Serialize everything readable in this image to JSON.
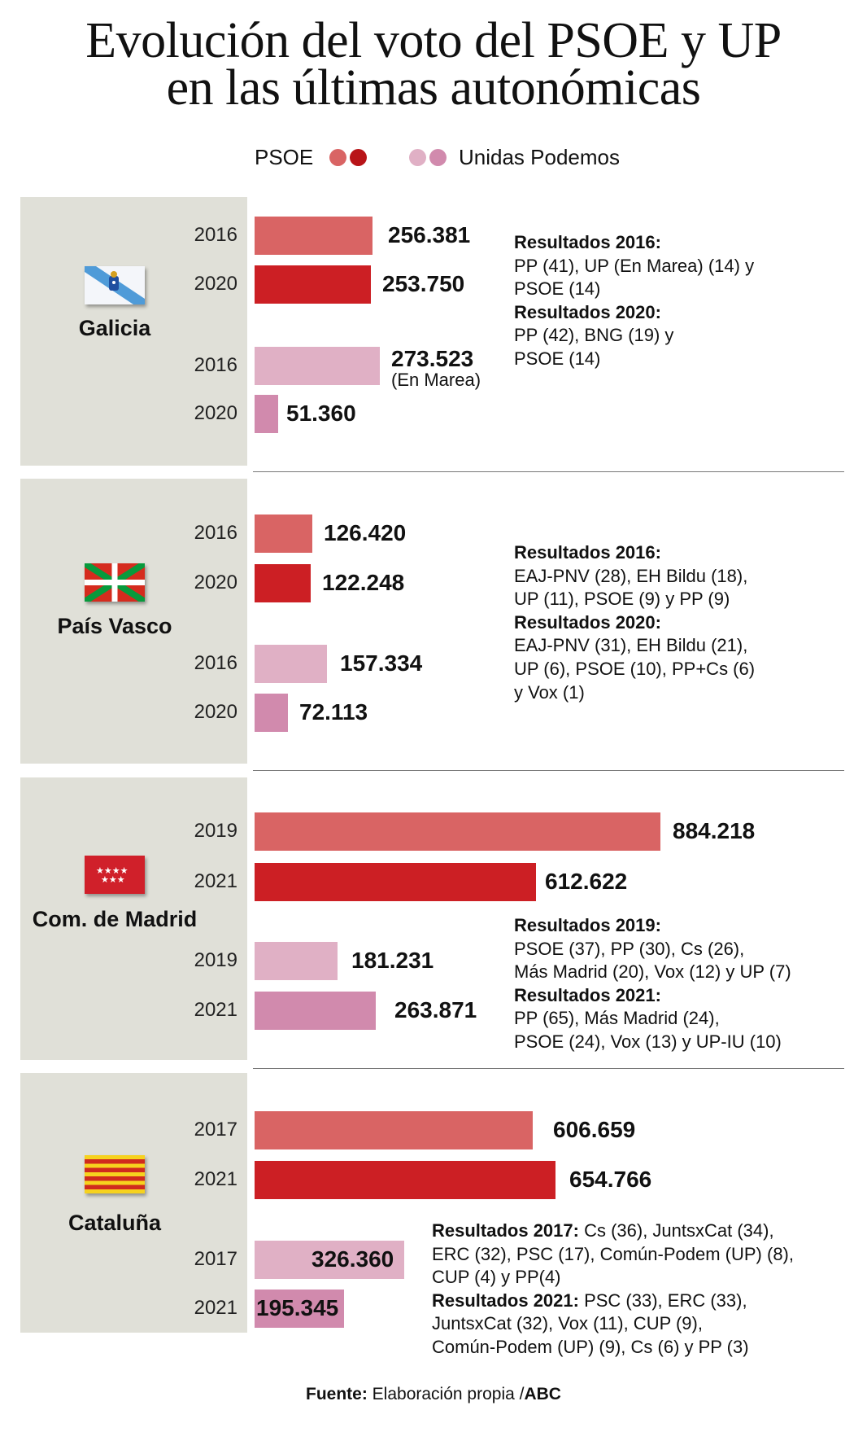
{
  "title_lines": [
    "Evolución del voto del PSOE y UP",
    "en las últimas autonómicas"
  ],
  "legend": {
    "psoe": "PSOE",
    "up": "Unidas Podemos"
  },
  "colors": {
    "psoe_old": "#d96464",
    "psoe_new": "#cc1f24",
    "up_old": "#e0b0c5",
    "up_new": "#d18aad",
    "panel": "#e0e0d8"
  },
  "chart_data": {
    "type": "bar",
    "orientation": "horizontal",
    "regions": [
      {
        "name": "Galicia",
        "flag": "galicia-flag-icon",
        "bars": [
          {
            "party": "PSOE",
            "year": "2016",
            "value": 256381,
            "label": "256.381"
          },
          {
            "party": "PSOE",
            "year": "2020",
            "value": 253750,
            "label": "253.750"
          },
          {
            "party": "UP",
            "year": "2016",
            "value": 273523,
            "label": "273.523",
            "sublabel": "(En Marea)"
          },
          {
            "party": "UP",
            "year": "2020",
            "value": 51360,
            "label": "51.360"
          }
        ],
        "notes": [
          {
            "b": "Resultados 2016:",
            "t": ""
          },
          {
            "t": "PP (41), UP (En Marea) (14) y"
          },
          {
            "t": "PSOE (14)"
          },
          {
            "b": "Resultados 2020:",
            "t": ""
          },
          {
            "t": "PP (42), BNG (19) y"
          },
          {
            "t": "PSOE (14)"
          }
        ]
      },
      {
        "name": "País Vasco",
        "flag": "basque-flag-icon",
        "bars": [
          {
            "party": "PSOE",
            "year": "2016",
            "value": 126420,
            "label": "126.420"
          },
          {
            "party": "PSOE",
            "year": "2020",
            "value": 122248,
            "label": "122.248"
          },
          {
            "party": "UP",
            "year": "2016",
            "value": 157334,
            "label": "157.334"
          },
          {
            "party": "UP",
            "year": "2020",
            "value": 72113,
            "label": "72.113"
          }
        ],
        "notes": [
          {
            "b": "Resultados 2016:",
            "t": ""
          },
          {
            "t": "EAJ-PNV (28), EH Bildu (18),"
          },
          {
            "t": "UP (11), PSOE (9) y PP (9)"
          },
          {
            "b": "Resultados 2020:",
            "t": ""
          },
          {
            "t": "EAJ-PNV (31), EH Bildu (21),"
          },
          {
            "t": "UP (6), PSOE (10), PP+Cs (6)"
          },
          {
            "t": "y Vox (1)"
          }
        ]
      },
      {
        "name": "Com. de Madrid",
        "flag": "madrid-flag-icon",
        "bars": [
          {
            "party": "PSOE",
            "year": "2019",
            "value": 884218,
            "label": "884.218"
          },
          {
            "party": "PSOE",
            "year": "2021",
            "value": 612622,
            "label": "612.622"
          },
          {
            "party": "UP",
            "year": "2019",
            "value": 181231,
            "label": "181.231"
          },
          {
            "party": "UP",
            "year": "2021",
            "value": 263871,
            "label": "263.871"
          }
        ],
        "notes": [
          {
            "b": "Resultados 2019:",
            "t": ""
          },
          {
            "t": "PSOE (37), PP (30), Cs (26),"
          },
          {
            "t": "Más Madrid (20), Vox (12) y UP (7)"
          },
          {
            "b": "Resultados 2021:",
            "t": ""
          },
          {
            "t": "PP (65), Más Madrid (24),"
          },
          {
            "t": "PSOE (24), Vox (13) y UP-IU (10)"
          }
        ]
      },
      {
        "name": "Cataluña",
        "flag": "catalonia-flag-icon",
        "bars": [
          {
            "party": "PSOE",
            "year": "2017",
            "value": 606659,
            "label": "606.659"
          },
          {
            "party": "PSOE",
            "year": "2021",
            "value": 654766,
            "label": "654.766"
          },
          {
            "party": "UP",
            "year": "2017",
            "value": 326360,
            "label": "326.360"
          },
          {
            "party": "UP",
            "year": "2021",
            "value": 195345,
            "label": "195.345"
          }
        ],
        "notes": [
          {
            "b": "Resultados 2017:",
            "t": " Cs (36), JuntsxCat (34),"
          },
          {
            "t": "ERC (32), PSC (17), Común-Podem (UP) (8),"
          },
          {
            "t": "CUP (4) y PP(4)"
          },
          {
            "b": "Resultados 2021:",
            "t": " PSC (33), ERC (33),"
          },
          {
            "t": "JuntsxCat (32), Vox (11), CUP (9),"
          },
          {
            "t": "Común-Podem (UP) (9), Cs (6) y PP (3)"
          }
        ]
      }
    ]
  },
  "footer": {
    "label": "Fuente:",
    "text": " Elaboración propia /",
    "brand": "ABC"
  }
}
